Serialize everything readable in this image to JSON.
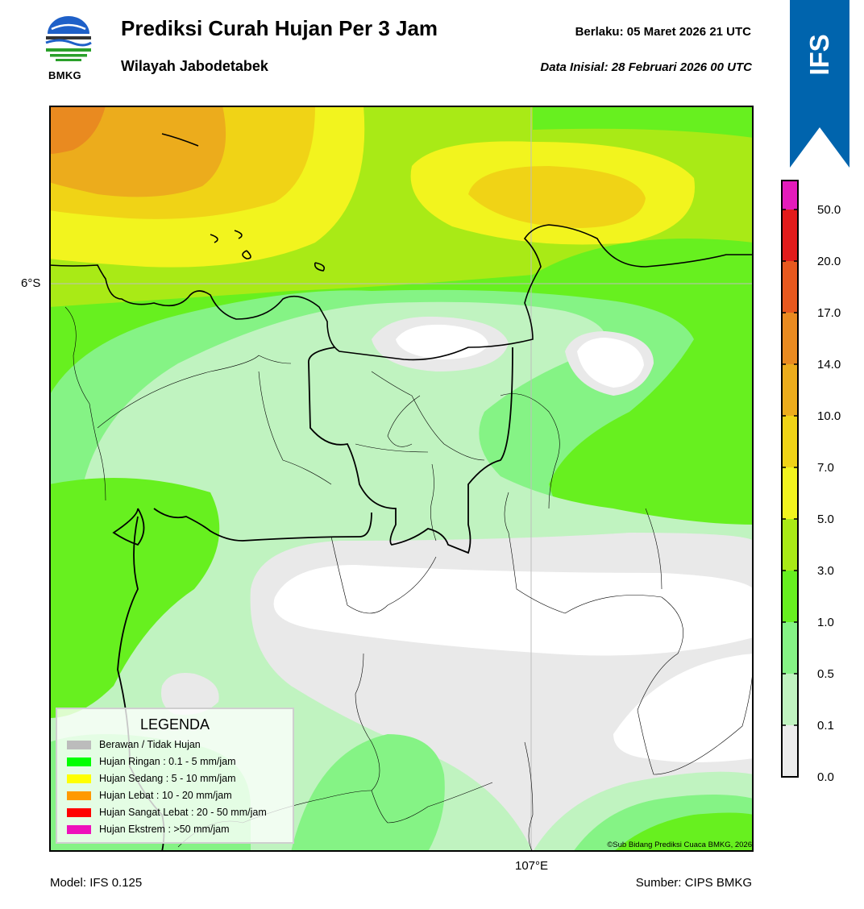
{
  "header": {
    "title": "Prediksi Curah Hujan Per 3 Jam",
    "subtitle": "Wilayah Jabodetabek",
    "valid": "Berlaku:  05 Maret 2026 21 UTC",
    "initial": "Data Inisial:  28 Februari 2026 00 UTC",
    "logo_text": "BMKG"
  },
  "ribbon": {
    "label": "IFS",
    "color": "#0064ad"
  },
  "map": {
    "lat_label": "6°S",
    "lon_label": "107°E",
    "credit": "©Sub Bidang Prediksi Cuaca BMKG, 2026"
  },
  "colorbar": {
    "labels": [
      "50.0",
      "20.0",
      "17.0",
      "14.0",
      "10.0",
      "7.0",
      "5.0",
      "3.0",
      "1.0",
      "0.5",
      "0.1",
      "0.0"
    ],
    "colors_top_to_bottom": [
      "#e41bbb",
      "#e21b1b",
      "#e8581e",
      "#e98a20",
      "#ecac1c",
      "#f0d316",
      "#f2f41e",
      "#a9ea16",
      "#67f01f",
      "#85f385",
      "#c0f3c0",
      "#e9e9e9",
      "#f4f4f4"
    ]
  },
  "legend": {
    "title": "LEGENDA",
    "items": [
      {
        "label": "Berawan / Tidak Hujan",
        "color": "#bcbcbc"
      },
      {
        "label": "Hujan Ringan : 0.1 - 5 mm/jam",
        "color": "#00ff00"
      },
      {
        "label": "Hujan Sedang : 5 - 10 mm/jam",
        "color": "#ffff00"
      },
      {
        "label": "Hujan Lebat : 10 - 20 mm/jam",
        "color": "#ff9900"
      },
      {
        "label": "Hujan Sangat Lebat : 20 - 50 mm/jam",
        "color": "#ff0000"
      },
      {
        "label": "Hujan Ekstrem : >50 mm/jam",
        "color": "#ee11bb"
      }
    ]
  },
  "footer": {
    "model": "Model: IFS 0.125",
    "source": "Sumber: CIPS BMKG"
  }
}
